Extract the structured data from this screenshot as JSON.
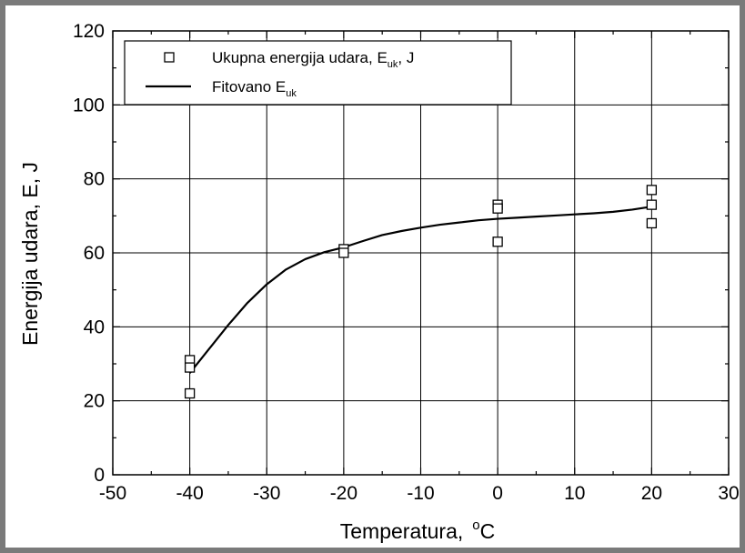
{
  "chart_data": {
    "type": "scatter",
    "xlabel": "Temperatura,",
    "xlabel_unit_sup": "o",
    "xlabel_unit": "C",
    "ylabel": "Energija udara,  E, J",
    "xlim": [
      -50,
      30
    ],
    "ylim": [
      0,
      120
    ],
    "x_ticks": [
      -50,
      -40,
      -30,
      -20,
      -10,
      0,
      10,
      20,
      30
    ],
    "y_ticks": [
      0,
      20,
      40,
      60,
      80,
      100,
      120
    ],
    "grid": true,
    "legend_position": "top-left",
    "series": [
      {
        "name": "Ukupna energija udara,  E_uk, J",
        "legend_main": "Ukupna energija udara,  E",
        "legend_sub": "uk",
        "legend_tail": ", J",
        "marker": "open-square",
        "x": [
          -40,
          -40,
          -40,
          -20,
          -20,
          0,
          0,
          0,
          20,
          20,
          20
        ],
        "y": [
          31,
          29,
          22,
          61,
          60,
          73,
          72,
          63,
          77,
          73,
          68
        ]
      },
      {
        "name": "Fitovano E_uk",
        "legend_main": "Fitovano E",
        "legend_sub": "uk",
        "legend_tail": "",
        "marker": "line",
        "x": [
          -40,
          -37.5,
          -35,
          -32.5,
          -30,
          -27.5,
          -25,
          -22.5,
          -20,
          -17.5,
          -15,
          -12.5,
          -10,
          -7.5,
          -5,
          -2.5,
          0,
          2.5,
          5,
          7.5,
          10,
          12.5,
          15,
          17.5,
          20
        ],
        "y": [
          27.5,
          34,
          40.5,
          46.5,
          51.5,
          55.5,
          58.3,
          60.2,
          61.5,
          63.2,
          64.8,
          65.9,
          66.8,
          67.6,
          68.2,
          68.8,
          69.2,
          69.5,
          69.8,
          70.1,
          70.4,
          70.7,
          71.1,
          71.7,
          72.5
        ]
      }
    ]
  }
}
